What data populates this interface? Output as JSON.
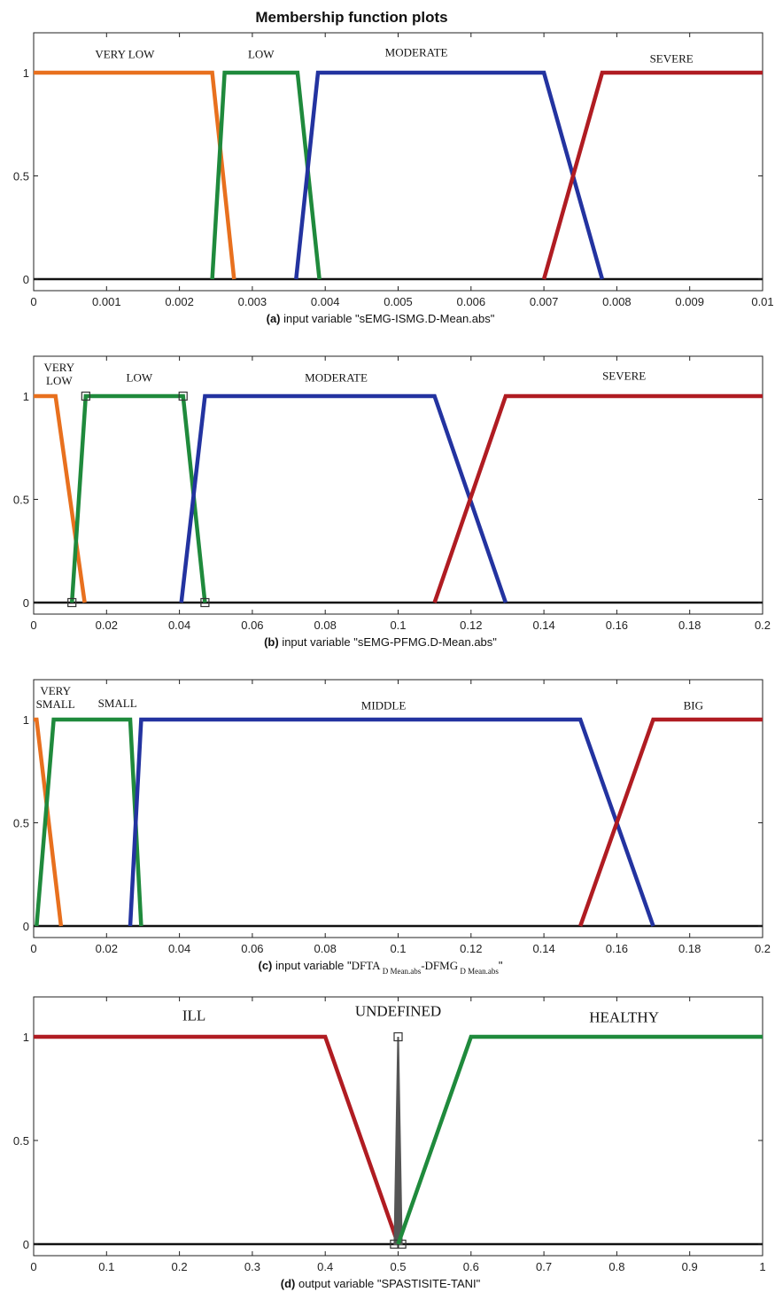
{
  "title": "Membership function plots",
  "chart_data": [
    {
      "type": "line",
      "caption_prefix": "(a)",
      "caption": "input variable \"sEMG-ISMG.D-Mean.abs\"",
      "xlim": [
        0,
        0.01
      ],
      "ylim": [
        0,
        1
      ],
      "xticks": [
        0,
        0.001,
        0.002,
        0.003,
        0.004,
        0.005,
        0.006,
        0.007,
        0.008,
        0.009,
        0.01
      ],
      "xtick_labels": [
        "0",
        "0.001",
        "0.002",
        "0.003",
        "0.004",
        "0.005",
        "0.006",
        "0.007",
        "0.008",
        "0.009",
        "0.01"
      ],
      "yticks": [
        0,
        0.5,
        1
      ],
      "ytick_labels": [
        "0",
        "0.5",
        "1"
      ],
      "series": [
        {
          "name": "VERY LOW",
          "color": "#e8701e",
          "x": [
            0,
            0.00245,
            0.00275
          ],
          "y": [
            1,
            1,
            0
          ],
          "label_x": 0.00125,
          "label_y": 1.07
        },
        {
          "name": "LOW",
          "color": "#1f8a3c",
          "x": [
            0.00245,
            0.00262,
            0.00362,
            0.00392
          ],
          "y": [
            0,
            1,
            1,
            0
          ],
          "label_x": 0.00312,
          "label_y": 1.07
        },
        {
          "name": "MODERATE",
          "color": "#2333a0",
          "x": [
            0.0036,
            0.0039,
            0.007,
            0.0078
          ],
          "y": [
            0,
            1,
            1,
            0
          ],
          "label_x": 0.00525,
          "label_y": 1.08
        },
        {
          "name": "SEVERE",
          "color": "#b01c22",
          "x": [
            0.007,
            0.0078,
            0.01
          ],
          "y": [
            0,
            1,
            1
          ],
          "label_x": 0.00875,
          "label_y": 1.05
        }
      ]
    },
    {
      "type": "line",
      "caption_prefix": "(b)",
      "caption": "input variable \"sEMG-PFMG.D-Mean.abs\"",
      "xlim": [
        0,
        0.2
      ],
      "ylim": [
        0,
        1
      ],
      "xticks": [
        0,
        0.02,
        0.04,
        0.06,
        0.08,
        0.1,
        0.12,
        0.14,
        0.16,
        0.18,
        0.2
      ],
      "xtick_labels": [
        "0",
        "0.02",
        "0.04",
        "0.06",
        "0.08",
        "0.1",
        "0.12",
        "0.14",
        "0.16",
        "0.18",
        "0.2"
      ],
      "yticks": [
        0,
        0.5,
        1
      ],
      "ytick_labels": [
        "0",
        "0.5",
        "1"
      ],
      "series": [
        {
          "name": "VERY LOW",
          "label_lines": [
            "VERY",
            "LOW"
          ],
          "color": "#e8701e",
          "x": [
            0,
            0.006,
            0.014
          ],
          "y": [
            1,
            1,
            0
          ],
          "label_x": 0.007,
          "label_y": 1.12
        },
        {
          "name": "LOW",
          "color": "#1f8a3c",
          "x": [
            0.0105,
            0.0143,
            0.041,
            0.047
          ],
          "y": [
            0,
            1,
            1,
            0
          ],
          "label_x": 0.029,
          "label_y": 1.07,
          "markers": true
        },
        {
          "name": "MODERATE",
          "color": "#2333a0",
          "x": [
            0.0405,
            0.047,
            0.11,
            0.1295
          ],
          "y": [
            0,
            1,
            1,
            0
          ],
          "label_x": 0.083,
          "label_y": 1.07
        },
        {
          "name": "SEVERE",
          "color": "#b01c22",
          "x": [
            0.11,
            0.1295,
            0.2
          ],
          "y": [
            0,
            1,
            1
          ],
          "label_x": 0.162,
          "label_y": 1.08
        }
      ]
    },
    {
      "type": "line",
      "caption_prefix": "(c)",
      "caption_parts": [
        {
          "t": "input variable \"",
          "font": "sans"
        },
        {
          "t": "DFTA",
          "font": "serif"
        },
        {
          "t": "D Mean.abs",
          "font": "serif",
          "sub": true
        },
        {
          "t": "-DFMG",
          "font": "serif"
        },
        {
          "t": "D Mean.abs",
          "font": "serif",
          "sub": true
        },
        {
          "t": "\"",
          "font": "sans"
        }
      ],
      "xlim": [
        0,
        0.2
      ],
      "ylim": [
        0,
        1
      ],
      "xticks": [
        0,
        0.02,
        0.04,
        0.06,
        0.08,
        0.1,
        0.12,
        0.14,
        0.16,
        0.18,
        0.2
      ],
      "xtick_labels": [
        "0",
        "0.02",
        "0.04",
        "0.06",
        "0.08",
        "0.1",
        "0.12",
        "0.14",
        "0.16",
        "0.18",
        "0.2"
      ],
      "yticks": [
        0,
        0.5,
        1
      ],
      "ytick_labels": [
        "0",
        "0.5",
        "1"
      ],
      "series": [
        {
          "name": "VERY SMALL",
          "label_lines": [
            "VERY",
            "SMALL"
          ],
          "color": "#e8701e",
          "x": [
            0,
            0.0008,
            0.0075
          ],
          "y": [
            1,
            1,
            0
          ],
          "label_x": 0.006,
          "label_y": 1.12
        },
        {
          "name": "SMALL",
          "color": "#1f8a3c",
          "x": [
            0.0008,
            0.0055,
            0.0265,
            0.0295
          ],
          "y": [
            0,
            1,
            1,
            0
          ],
          "label_x": 0.023,
          "label_y": 1.06
        },
        {
          "name": "MIDDLE",
          "color": "#2333a0",
          "x": [
            0.0265,
            0.0295,
            0.15,
            0.17
          ],
          "y": [
            0,
            1,
            1,
            0
          ],
          "label_x": 0.096,
          "label_y": 1.05
        },
        {
          "name": "BIG",
          "color": "#b01c22",
          "x": [
            0.15,
            0.17,
            0.2
          ],
          "y": [
            0,
            1,
            1
          ],
          "label_x": 0.181,
          "label_y": 1.05
        }
      ]
    },
    {
      "type": "line",
      "caption_prefix": "(d)",
      "caption": "output variable \"SPASTISITE-TANI\"",
      "xlim": [
        0,
        1
      ],
      "ylim": [
        0,
        1
      ],
      "xticks": [
        0,
        0.1,
        0.2,
        0.3,
        0.4,
        0.5,
        0.6,
        0.7,
        0.8,
        0.9,
        1
      ],
      "xtick_labels": [
        "0",
        "0.1",
        "0.2",
        "0.3",
        "0.4",
        "0.5",
        "0.6",
        "0.7",
        "0.8",
        "0.9",
        "1"
      ],
      "yticks": [
        0,
        0.5,
        1
      ],
      "ytick_labels": [
        "0",
        "0.5",
        "1"
      ],
      "big_labels": true,
      "series": [
        {
          "name": "ILL",
          "color": "#b01c22",
          "x": [
            0,
            0.4,
            0.5
          ],
          "y": [
            1,
            1,
            0
          ],
          "label_x": 0.22,
          "label_y": 1.08
        },
        {
          "name": "UNDEFINED",
          "color": "#555555",
          "x": [
            0.495,
            0.5,
            0.505
          ],
          "y": [
            0,
            1,
            0
          ],
          "label_x": 0.5,
          "label_y": 1.1,
          "fill": true,
          "markers": true
        },
        {
          "name": "HEALTHY",
          "color": "#1f8a3c",
          "x": [
            0.5,
            0.6,
            1
          ],
          "y": [
            0,
            1,
            1
          ],
          "label_x": 0.81,
          "label_y": 1.07
        }
      ]
    }
  ]
}
